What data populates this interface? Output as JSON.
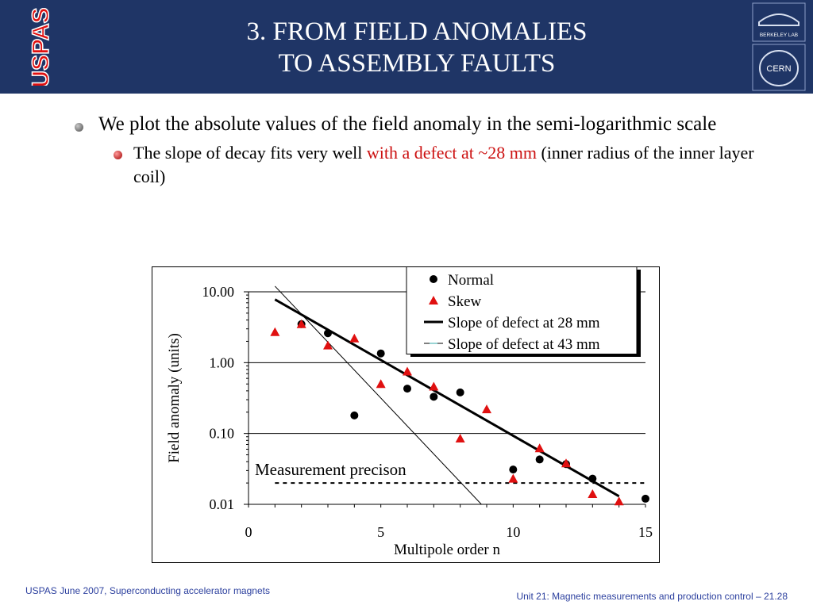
{
  "slide": {
    "title_line1": "3. FROM FIELD ANOMALIES",
    "title_line2": "TO ASSEMBLY FAULTS",
    "logo_left_text": "USPAS",
    "logo_right_top_text": "BERKELEY LAB",
    "logo_right_bottom_text": "CERN",
    "bullet1": "We plot the absolute values of the field anomaly in the semi-logarithmic scale",
    "bullet2_pre": "The slope of decay fits very well ",
    "bullet2_highlight": "with a defect at ~28 mm",
    "bullet2_post": " (inner radius of the inner layer coil)",
    "footer_left": "USPAS June  2007,  Superconducting accelerator magnets",
    "footer_right": "Unit 21: Magnetic measurements and production control  – 21.28",
    "colors": {
      "header_bg": "#1f3566",
      "highlight": "#cc1111",
      "footer": "#2b3f9e",
      "logo_red": "#e01010"
    }
  },
  "chart_data": {
    "type": "scatter",
    "xlabel": "Multipole order n",
    "ylabel": "Field anomaly (units)",
    "xlim": [
      0,
      15
    ],
    "ylim": [
      0.01,
      10
    ],
    "y_scale": "log",
    "x_ticks": [
      "0",
      "5",
      "10",
      "15"
    ],
    "y_ticks": [
      "0.01",
      "0.10",
      "1.00",
      "10.00"
    ],
    "grid": "horizontal",
    "legend_position": "top-right",
    "annotation": "Measurement precison",
    "precision_level": 0.02,
    "series": [
      {
        "name": "Normal",
        "marker": "circle",
        "color": "#000000",
        "x": [
          2,
          3,
          4,
          5,
          6,
          7,
          8,
          10,
          11,
          12,
          13,
          15
        ],
        "y": [
          3.5,
          2.6,
          0.18,
          1.35,
          0.43,
          0.33,
          0.38,
          0.031,
          0.043,
          0.037,
          0.023,
          0.012
        ]
      },
      {
        "name": "Skew",
        "marker": "triangle",
        "color": "#e01010",
        "x": [
          1,
          2,
          3,
          4,
          5,
          6,
          7,
          8,
          9,
          10,
          11,
          12,
          13,
          14
        ],
        "y": [
          2.7,
          3.5,
          1.75,
          2.2,
          0.5,
          0.75,
          0.46,
          0.085,
          0.22,
          0.023,
          0.062,
          0.038,
          0.014,
          0.011
        ]
      },
      {
        "name": "Slope of defect at 28 mm",
        "line": true,
        "width": 3,
        "color": "#000000",
        "x": [
          1,
          14
        ],
        "y": [
          7.8,
          0.013
        ]
      },
      {
        "name": "Slope of defect at 43 mm",
        "line": true,
        "width": 1,
        "color": "#000000",
        "x": [
          1,
          8.8
        ],
        "y": [
          12,
          0.01
        ]
      }
    ]
  }
}
